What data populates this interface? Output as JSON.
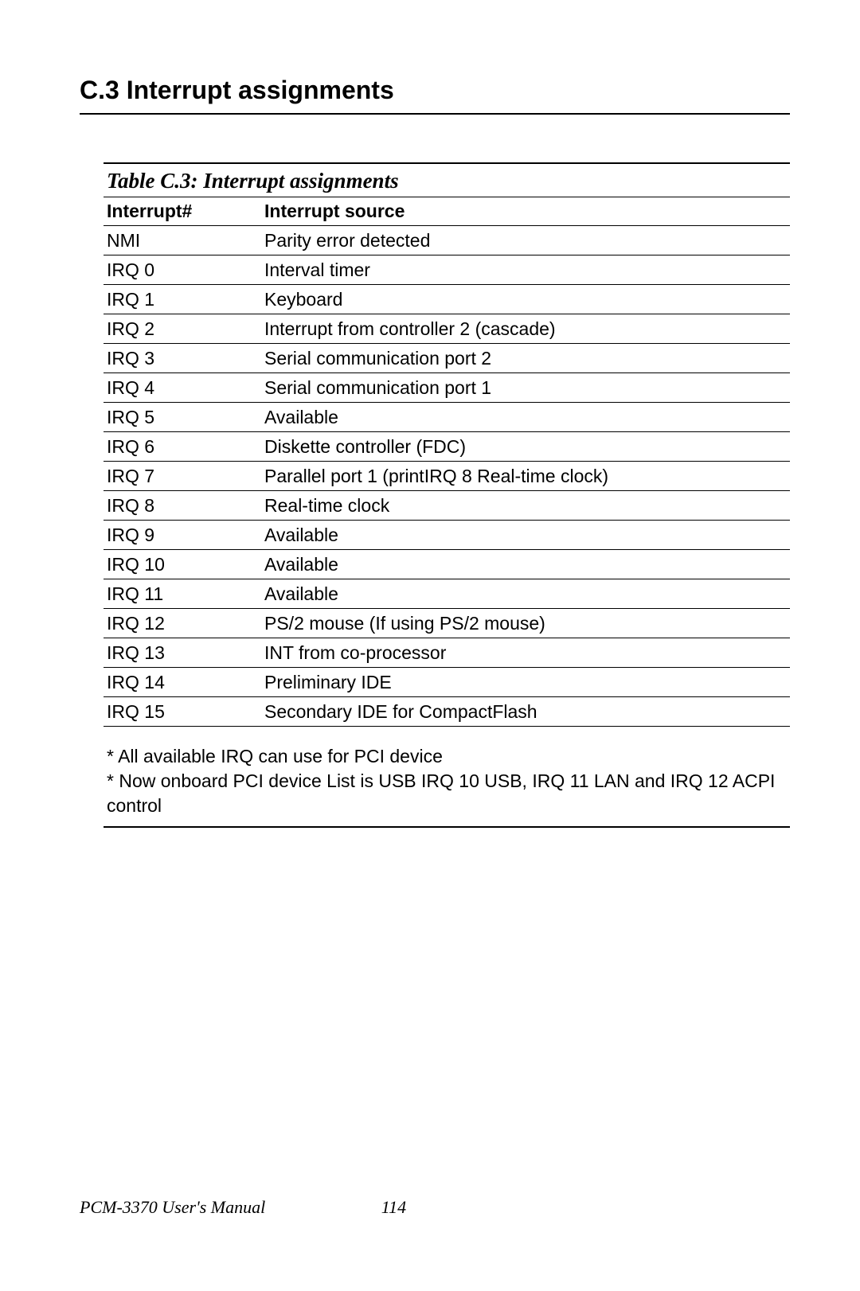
{
  "heading": "C.3  Interrupt assignments",
  "table": {
    "caption": "Table C.3: Interrupt assignments",
    "columns": [
      "Interrupt#",
      "Interrupt source"
    ],
    "rows": [
      [
        "NMI",
        "Parity error detected"
      ],
      [
        "IRQ 0",
        "Interval timer"
      ],
      [
        "IRQ 1",
        "Keyboard"
      ],
      [
        "IRQ 2",
        "Interrupt from controller 2 (cascade)"
      ],
      [
        "IRQ 3",
        "Serial communication port 2"
      ],
      [
        "IRQ 4",
        "Serial communication port 1"
      ],
      [
        "IRQ 5",
        "Available"
      ],
      [
        "IRQ 6",
        "Diskette controller (FDC)"
      ],
      [
        "IRQ 7",
        "Parallel port 1 (printIRQ 8 Real-time clock)"
      ],
      [
        "IRQ 8",
        "Real-time clock"
      ],
      [
        "IRQ 9",
        "Available"
      ],
      [
        "IRQ 10",
        "Available"
      ],
      [
        "IRQ 11",
        "Available"
      ],
      [
        "IRQ 12",
        "PS/2 mouse (If using PS/2 mouse)"
      ],
      [
        "IRQ 13",
        "INT from co-processor"
      ],
      [
        "IRQ 14",
        "Preliminary IDE"
      ],
      [
        "IRQ 15",
        "Secondary IDE for CompactFlash"
      ]
    ]
  },
  "notes": [
    "* All available IRQ can use for PCI device",
    "* Now onboard PCI device List is USB IRQ 10 USB, IRQ 11 LAN and IRQ 12 ACPI control"
  ],
  "footer": {
    "manual": "PCM-3370 User's Manual",
    "page": "114"
  }
}
